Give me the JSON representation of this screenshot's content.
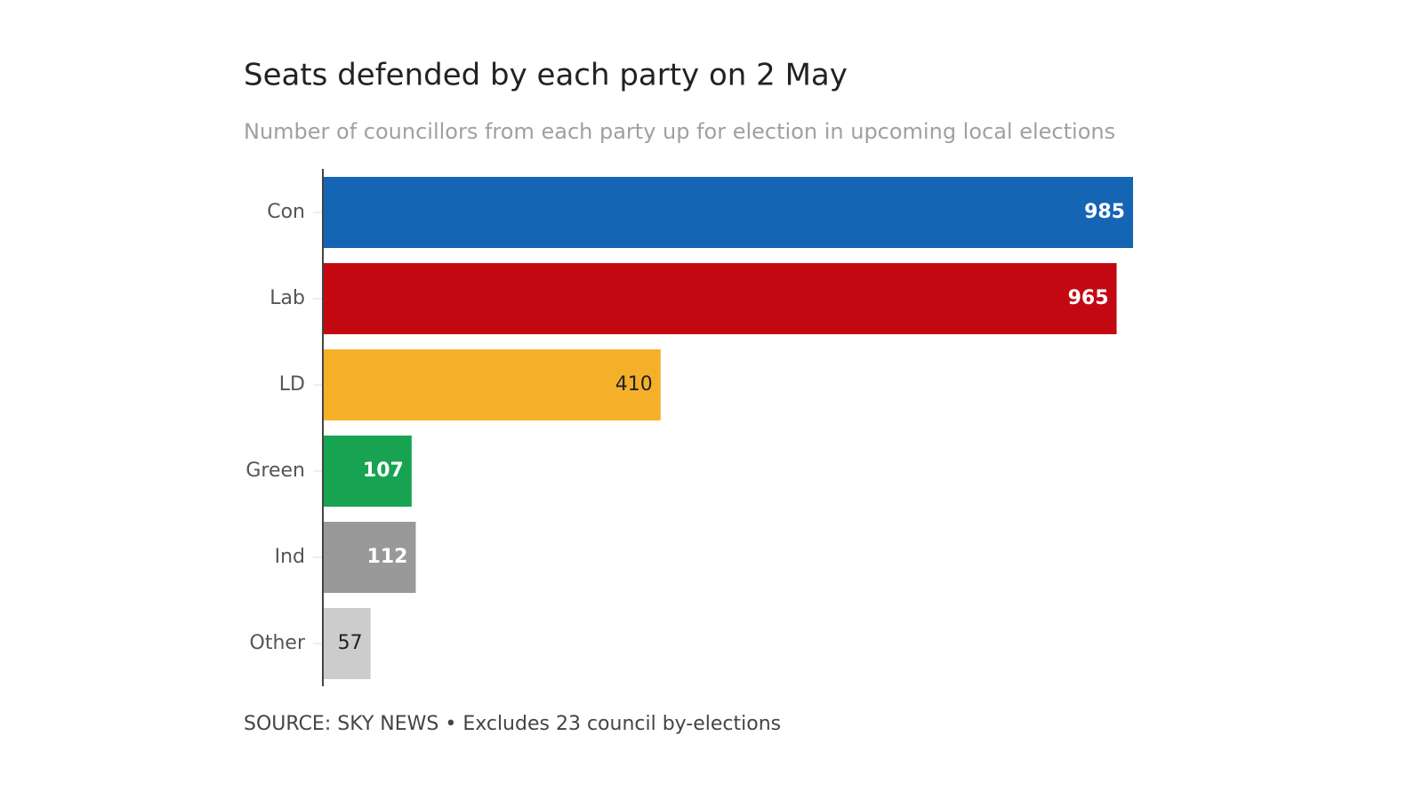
{
  "chart_data": {
    "type": "bar",
    "orientation": "horizontal",
    "title": "Seats defended by each party on 2 May",
    "subtitle": "Number of councillors from each party up for election in upcoming local elections",
    "source": "SOURCE: SKY NEWS • Excludes 23 council by-elections",
    "categories": [
      "Con",
      "Lab",
      "LD",
      "Green",
      "Ind",
      "Other"
    ],
    "values": [
      985,
      965,
      410,
      107,
      112,
      57
    ],
    "colors": [
      "#1565b5",
      "#c40812",
      "#f5b02a",
      "#18a352",
      "#999999",
      "#cccccc"
    ]
  }
}
